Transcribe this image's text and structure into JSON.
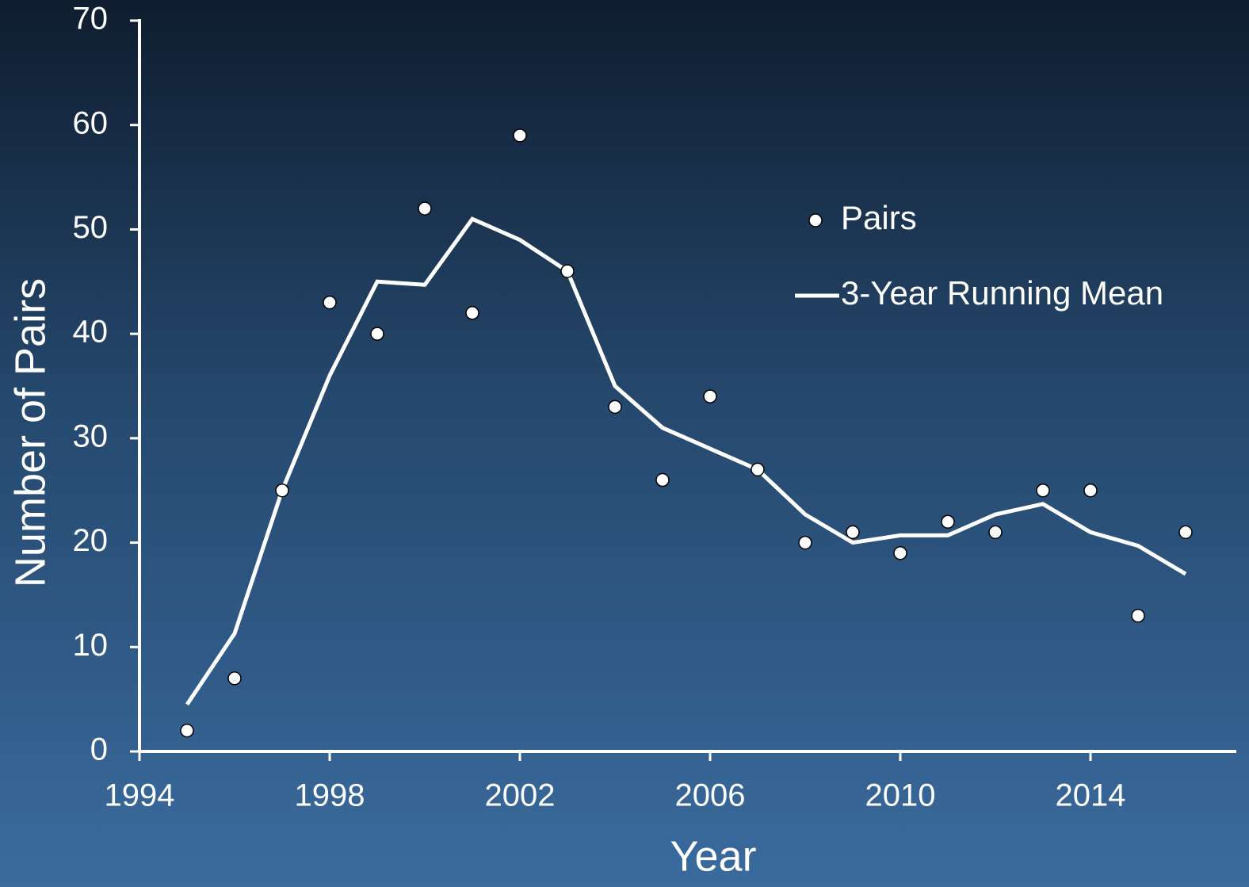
{
  "chart_data": {
    "type": "line",
    "x_label": "Year",
    "y_label": "Number of Pairs",
    "x": [
      1995,
      1996,
      1997,
      1998,
      1999,
      2000,
      2001,
      2002,
      2003,
      2004,
      2005,
      2006,
      2007,
      2008,
      2009,
      2010,
      2011,
      2012,
      2013,
      2014,
      2015,
      2016
    ],
    "series": [
      {
        "name": "Pairs",
        "color": "#ffffff",
        "kind": "markers",
        "values": [
          2,
          7,
          25,
          43,
          40,
          52,
          42,
          59,
          46,
          33,
          26,
          34,
          27,
          20,
          21,
          19,
          22,
          21,
          25,
          25,
          13,
          21
        ]
      },
      {
        "name": "3-Year Running Mean",
        "color": "#ffffff",
        "kind": "line",
        "values": [
          4.5,
          11.3,
          25,
          36,
          45,
          44.7,
          51,
          49,
          46,
          35,
          31,
          29,
          27,
          22.7,
          20,
          20.7,
          20.7,
          22.7,
          23.7,
          21,
          19.7,
          17
        ]
      }
    ],
    "xlim": [
      1994,
      2017
    ],
    "xticks": [
      1994,
      1998,
      2002,
      2006,
      2010,
      2014
    ],
    "ylim": [
      0,
      70
    ],
    "yticks": [
      0,
      10,
      20,
      30,
      40,
      50,
      60,
      70
    ],
    "legend": "top-right"
  }
}
